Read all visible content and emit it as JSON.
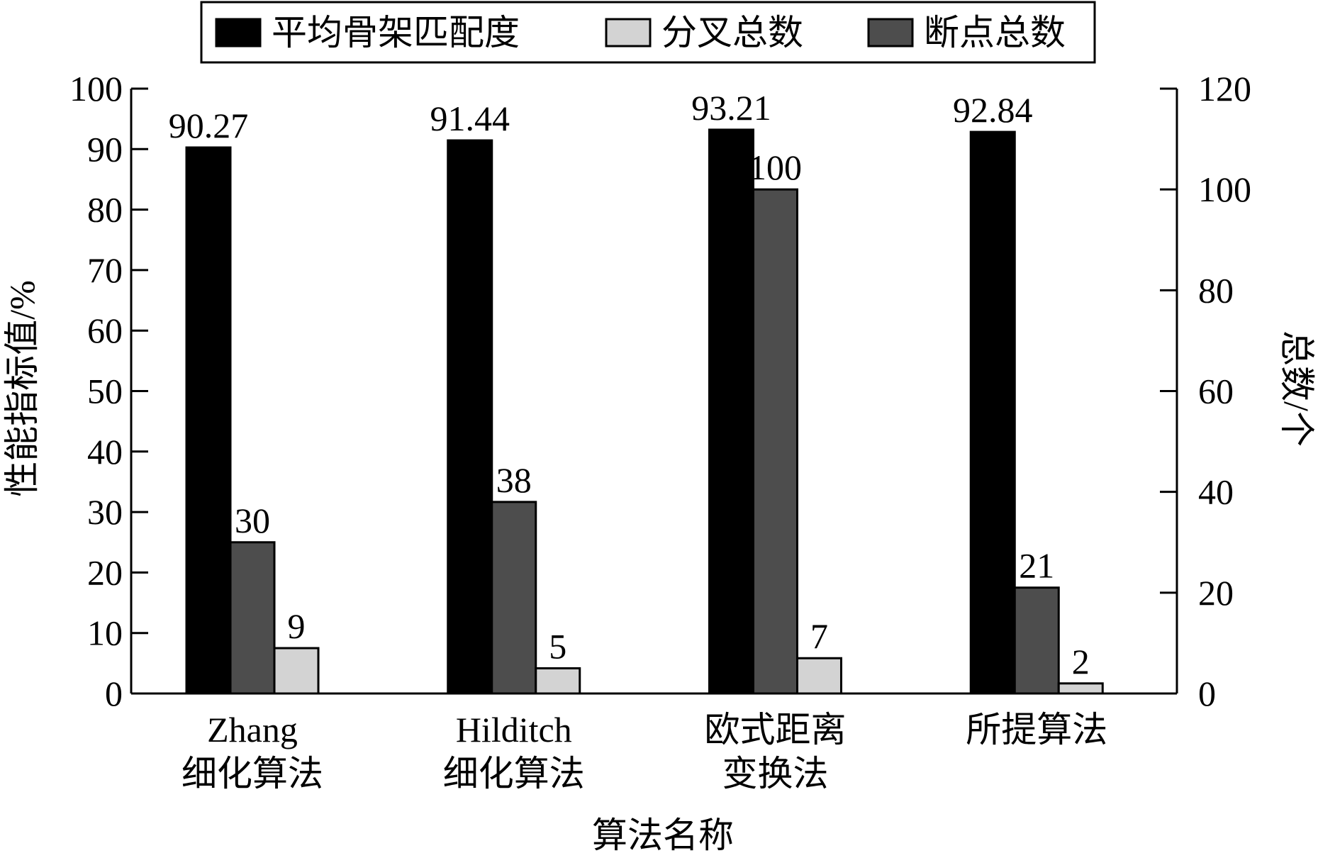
{
  "chart_data": {
    "type": "bar",
    "title": "",
    "xlabel": "算法名称",
    "ylabel": "性能指标值/%",
    "y2label": "总数/个",
    "ylim": [
      0,
      100
    ],
    "y2lim": [
      0,
      120
    ],
    "yticks": [
      "0",
      "10",
      "20",
      "30",
      "40",
      "50",
      "60",
      "70",
      "80",
      "90",
      "100"
    ],
    "y2ticks": [
      "0",
      "20",
      "40",
      "60",
      "80",
      "100",
      "120"
    ],
    "categories": [
      {
        "line1": "Zhang",
        "line2": "细化算法"
      },
      {
        "line1": "Hilditch",
        "line2": "细化算法"
      },
      {
        "line1": "欧式距离",
        "line2": "变换法"
      },
      {
        "line1": "所提算法",
        "line2": ""
      }
    ],
    "series": [
      {
        "name": "平均骨架匹配度",
        "axis": "left",
        "color": "#000000",
        "values": [
          90.27,
          91.44,
          93.21,
          92.84
        ],
        "labels": [
          "90.27",
          "91.44",
          "93.21",
          "92.84"
        ]
      },
      {
        "name": "断点总数",
        "axis": "right",
        "color": "#4d4d4d",
        "values": [
          30,
          38,
          100,
          21
        ],
        "labels": [
          "30",
          "38",
          "100",
          "21"
        ]
      },
      {
        "name": "分叉总数",
        "axis": "right",
        "color": "#d3d3d3",
        "values": [
          9,
          5,
          7,
          2
        ],
        "labels": [
          "9",
          "5",
          "7",
          "2"
        ]
      }
    ],
    "legend": {
      "position": "top",
      "order": [
        0,
        2,
        1
      ]
    },
    "grid": false
  }
}
